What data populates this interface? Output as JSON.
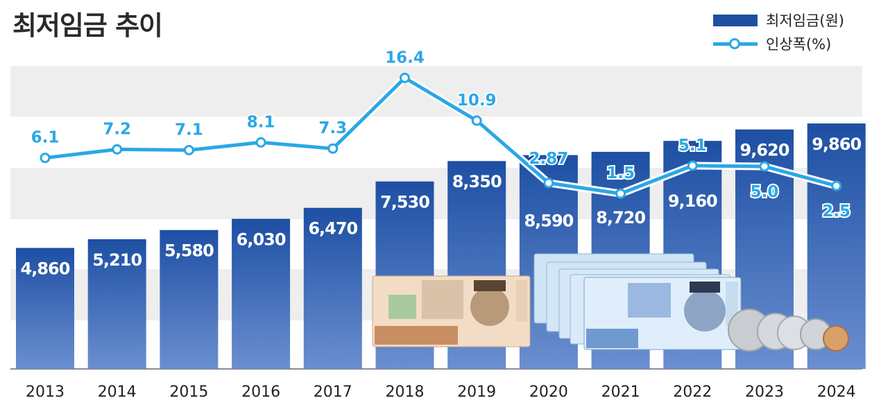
{
  "title": "최저임금 추이",
  "legend": {
    "bar_label": "최저임금(원)",
    "line_label": "인상폭(%)"
  },
  "colors": {
    "bar_top": "#1d4fa3",
    "bar_bottom": "#6b8fd0",
    "line": "#2ba7e6",
    "band": "#eeeeee"
  },
  "chart_data": {
    "type": "bar",
    "categories": [
      "2013",
      "2014",
      "2015",
      "2016",
      "2017",
      "2018",
      "2019",
      "2020",
      "2021",
      "2022",
      "2023",
      "2024"
    ],
    "series": [
      {
        "name": "최저임금(원)",
        "type": "bar",
        "values": [
          4860,
          5210,
          5580,
          6030,
          6470,
          7530,
          8350,
          8590,
          8720,
          9160,
          9620,
          9860
        ],
        "labels": [
          "4,860",
          "5,210",
          "5,580",
          "6,030",
          "6,470",
          "7,530",
          "8,350",
          "8,590",
          "8,720",
          "9,160",
          "9,620",
          "9,860"
        ]
      },
      {
        "name": "인상폭(%)",
        "type": "line",
        "values": [
          6.1,
          7.2,
          7.1,
          8.1,
          7.3,
          16.4,
          10.9,
          2.87,
          1.5,
          5.1,
          5.0,
          2.5
        ],
        "labels": [
          "6.1",
          "7.2",
          "7.1",
          "8.1",
          "7.3",
          "16.4",
          "10.9",
          "2.87",
          "1.5",
          "5.1",
          "5.0",
          "2.5"
        ]
      }
    ]
  }
}
